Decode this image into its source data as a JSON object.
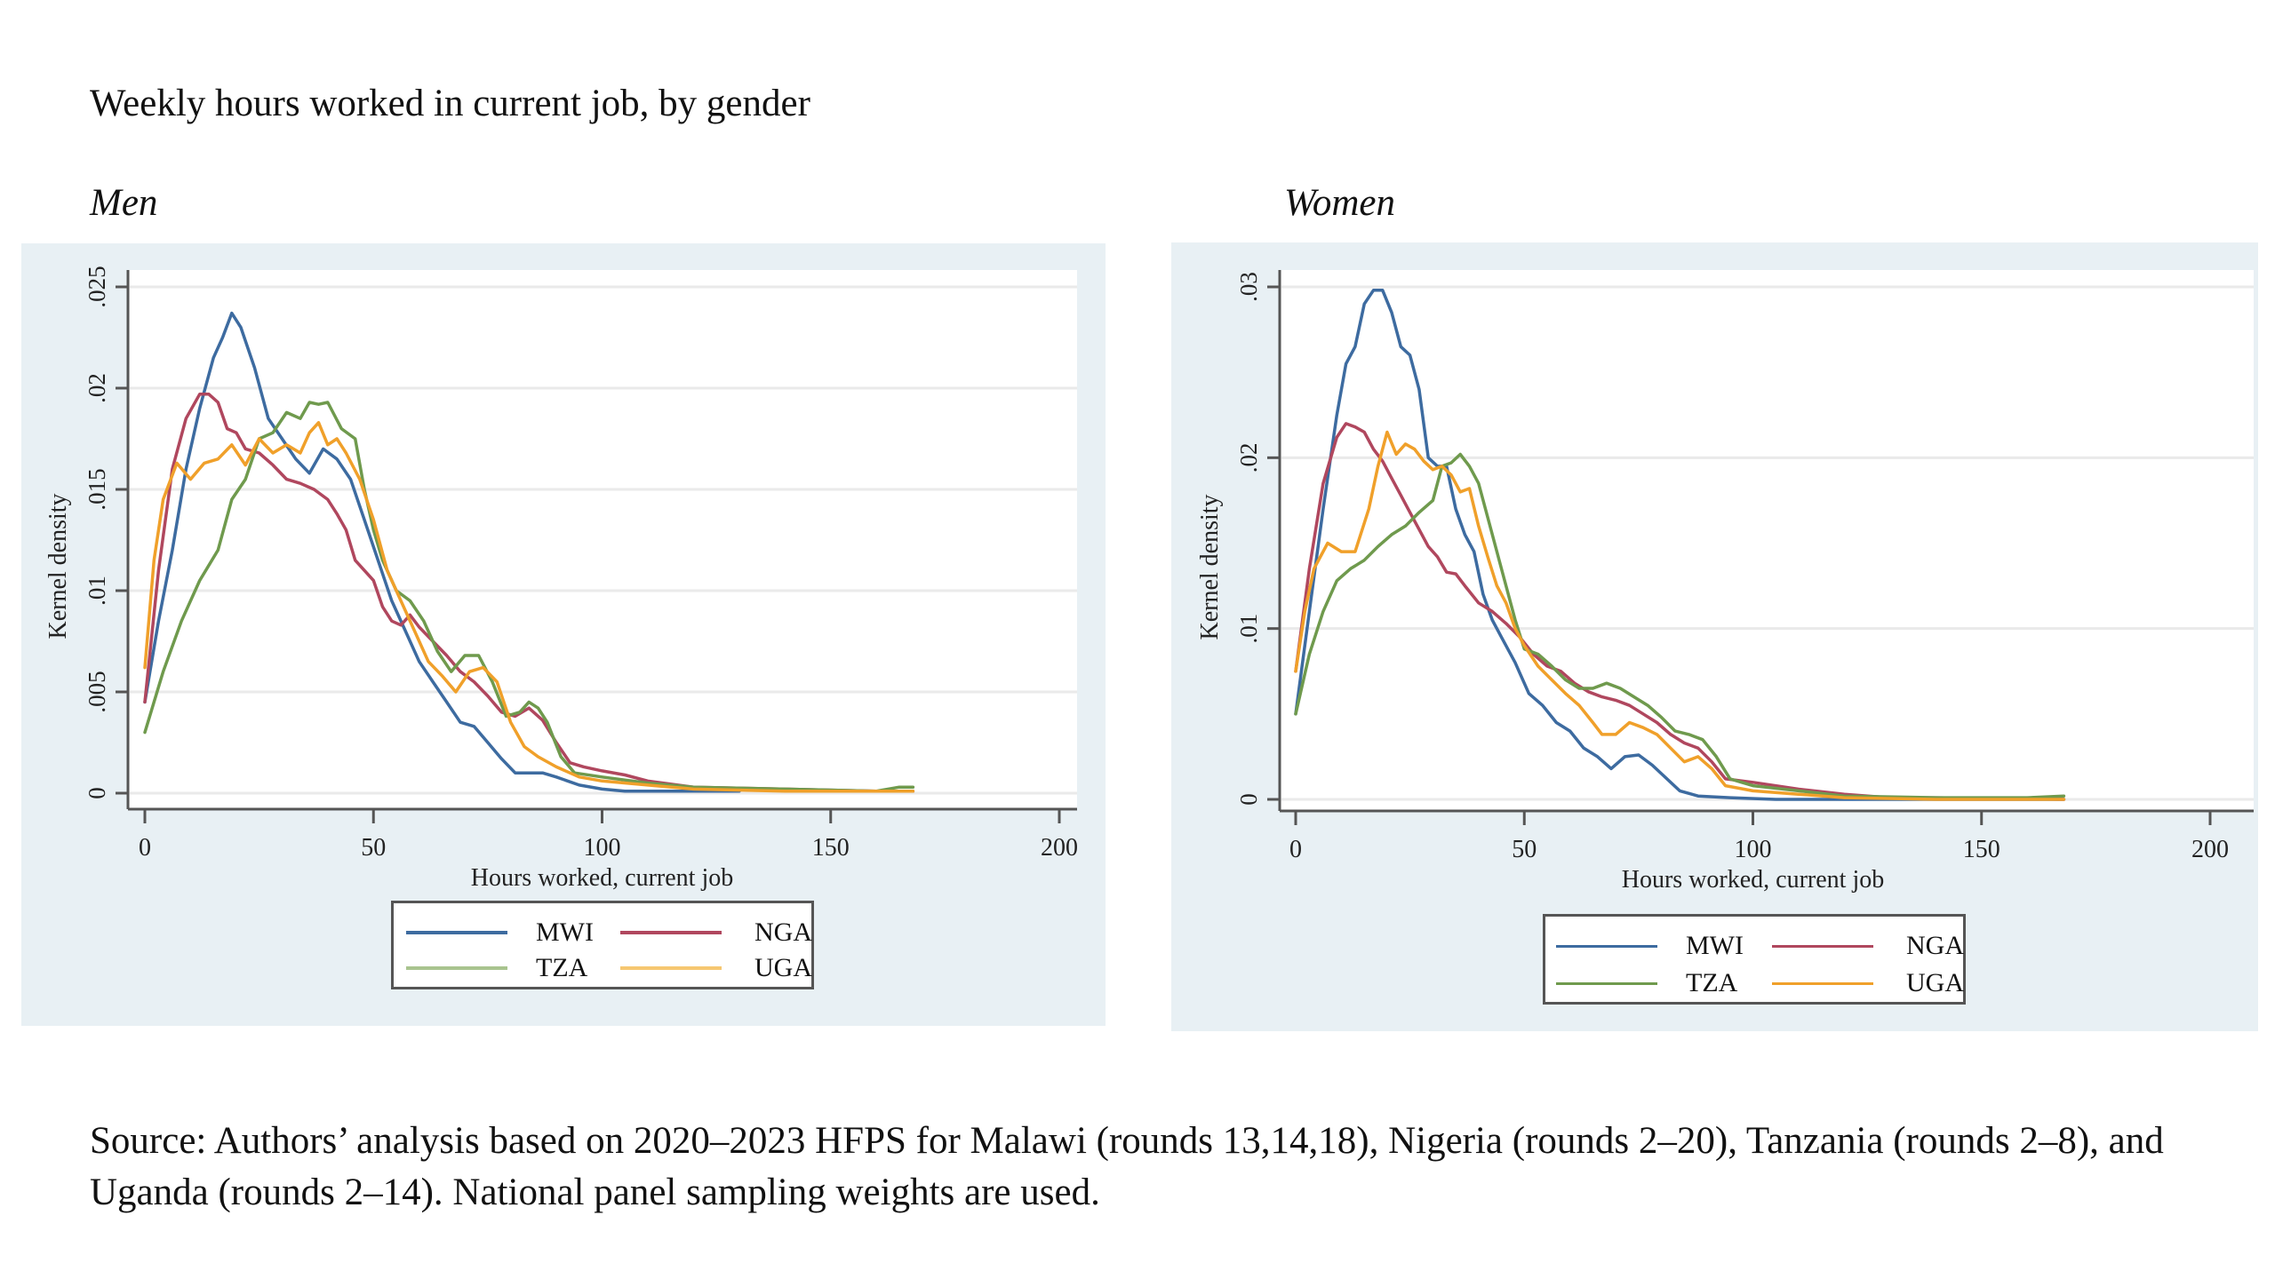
{
  "figure": {
    "title": "Weekly hours worked in current job, by gender",
    "source": "Source: Authors’ analysis based on 2020–2023 HFPS for Malawi (rounds 13,14,18), Nigeria (rounds 2–20), Tanzania (rounds 2–8), and Uganda (rounds 2–14). National panel sampling weights are used."
  },
  "colors": {
    "MWI": "#3d6ba0",
    "NGA": "#b0475e",
    "TZA": "#6f9a4d",
    "UGA": "#f0a02a",
    "panel_bg": "#e8f0f4",
    "grid": "#eaeaea",
    "axis": "#555555"
  },
  "chart_data": [
    {
      "type": "line",
      "panel_title": "Men",
      "title": "Men",
      "xlabel": "Hours worked, current job",
      "ylabel": "Kernel density",
      "xlim": [
        0,
        200
      ],
      "ylim": [
        0,
        0.025
      ],
      "xticks": [
        0,
        50,
        100,
        150,
        200
      ],
      "xtick_labels": [
        "0",
        "50",
        "100",
        "150",
        "200"
      ],
      "yticks": [
        0,
        0.005,
        0.01,
        0.015,
        0.02,
        0.025
      ],
      "ytick_labels": [
        "0",
        ".005",
        ".01",
        ".015",
        ".02",
        ".025"
      ],
      "grid": true,
      "legend_position": "bottom",
      "legend": [
        "MWI",
        "NGA",
        "TZA",
        "UGA"
      ],
      "series": [
        {
          "name": "MWI",
          "x": [
            0,
            3,
            6,
            9,
            12,
            15,
            17,
            19,
            21,
            24,
            27,
            30,
            33,
            36,
            39,
            42,
            45,
            48,
            51,
            54,
            57,
            60,
            63,
            66,
            69,
            72,
            75,
            78,
            81,
            84,
            87,
            90,
            95,
            100,
            105,
            110,
            120,
            130
          ],
          "y": [
            0.0045,
            0.0085,
            0.012,
            0.016,
            0.019,
            0.0215,
            0.0225,
            0.0237,
            0.023,
            0.021,
            0.0185,
            0.0175,
            0.0165,
            0.0158,
            0.017,
            0.0165,
            0.0155,
            0.0135,
            0.0115,
            0.0095,
            0.008,
            0.0065,
            0.0055,
            0.0045,
            0.0035,
            0.0033,
            0.0025,
            0.0017,
            0.001,
            0.001,
            0.001,
            0.0008,
            0.0004,
            0.0002,
            0.0001,
            0.0001,
            0.0001,
            0.0001
          ]
        },
        {
          "name": "NGA",
          "x": [
            0,
            3,
            6,
            9,
            12,
            14,
            16,
            18,
            20,
            22,
            25,
            28,
            31,
            34,
            37,
            40,
            42,
            44,
            46,
            48,
            50,
            52,
            54,
            56,
            58,
            60,
            63,
            66,
            69,
            72,
            75,
            78,
            81,
            84,
            87,
            90,
            93,
            96,
            100,
            105,
            110,
            120,
            140,
            160,
            168
          ],
          "y": [
            0.0045,
            0.011,
            0.016,
            0.0185,
            0.0197,
            0.0197,
            0.0193,
            0.018,
            0.0178,
            0.017,
            0.0168,
            0.0162,
            0.0155,
            0.0153,
            0.015,
            0.0145,
            0.0138,
            0.013,
            0.0115,
            0.011,
            0.0105,
            0.0092,
            0.0085,
            0.0083,
            0.0088,
            0.0082,
            0.0075,
            0.0068,
            0.006,
            0.0055,
            0.0048,
            0.004,
            0.0038,
            0.0042,
            0.0036,
            0.0025,
            0.0015,
            0.0013,
            0.0011,
            0.0009,
            0.0006,
            0.0003,
            0.0002,
            0.0001,
            0.0001
          ]
        },
        {
          "name": "TZA",
          "x": [
            0,
            4,
            8,
            12,
            16,
            19,
            22,
            25,
            28,
            31,
            34,
            36,
            38,
            40,
            43,
            46,
            48,
            50,
            52,
            55,
            58,
            61,
            64,
            67,
            70,
            73,
            76,
            79,
            82,
            84,
            86,
            88,
            91,
            94,
            100,
            110,
            120,
            140,
            160,
            165,
            168
          ],
          "y": [
            0.003,
            0.006,
            0.0085,
            0.0105,
            0.012,
            0.0145,
            0.0155,
            0.0175,
            0.0178,
            0.0188,
            0.0185,
            0.0193,
            0.0192,
            0.0193,
            0.018,
            0.0175,
            0.015,
            0.013,
            0.0115,
            0.01,
            0.0095,
            0.0085,
            0.007,
            0.006,
            0.0068,
            0.0068,
            0.0055,
            0.0038,
            0.004,
            0.0045,
            0.0042,
            0.0035,
            0.0018,
            0.001,
            0.0008,
            0.0005,
            0.0003,
            0.0002,
            0.0001,
            0.0003,
            0.0003
          ]
        },
        {
          "name": "UGA",
          "x": [
            0,
            2,
            4,
            7,
            10,
            13,
            16,
            19,
            22,
            25,
            28,
            31,
            34,
            36,
            38,
            40,
            42,
            44,
            47,
            50,
            53,
            56,
            59,
            62,
            65,
            68,
            71,
            74,
            77,
            80,
            83,
            86,
            90,
            95,
            100,
            110,
            120,
            140,
            168
          ],
          "y": [
            0.0062,
            0.0115,
            0.0145,
            0.0163,
            0.0155,
            0.0163,
            0.0165,
            0.0172,
            0.0162,
            0.0175,
            0.0168,
            0.0172,
            0.0168,
            0.0178,
            0.0183,
            0.0172,
            0.0175,
            0.0168,
            0.0155,
            0.0135,
            0.011,
            0.0095,
            0.008,
            0.0065,
            0.0058,
            0.005,
            0.006,
            0.0062,
            0.0055,
            0.0035,
            0.0023,
            0.0018,
            0.0013,
            0.0008,
            0.0006,
            0.0004,
            0.0002,
            0.0001,
            0.0001
          ]
        }
      ]
    },
    {
      "type": "line",
      "panel_title": "Women",
      "title": "Women",
      "xlabel": "Hours worked, current job",
      "ylabel": "Kernel density",
      "xlim": [
        0,
        200
      ],
      "ylim": [
        0,
        0.03
      ],
      "xticks": [
        0,
        50,
        100,
        150,
        200
      ],
      "xtick_labels": [
        "0",
        "50",
        "100",
        "150",
        "200"
      ],
      "yticks": [
        0,
        0.01,
        0.02,
        0.03
      ],
      "ytick_labels": [
        "0",
        ".01",
        ".02",
        ".03"
      ],
      "grid": true,
      "legend_position": "bottom",
      "legend": [
        "MWI",
        "NGA",
        "TZA",
        "UGA"
      ],
      "series": [
        {
          "name": "MWI",
          "x": [
            0,
            3,
            6,
            9,
            11,
            13,
            15,
            17,
            19,
            21,
            23,
            25,
            27,
            29,
            31,
            33,
            35,
            37,
            39,
            41,
            43,
            45,
            48,
            51,
            54,
            57,
            60,
            63,
            66,
            69,
            72,
            75,
            78,
            80,
            84,
            88,
            95,
            105,
            120,
            140,
            160,
            168
          ],
          "y": [
            0.005,
            0.011,
            0.017,
            0.0225,
            0.0255,
            0.0265,
            0.029,
            0.0298,
            0.0298,
            0.0285,
            0.0265,
            0.026,
            0.024,
            0.02,
            0.0195,
            0.0195,
            0.017,
            0.0155,
            0.0145,
            0.012,
            0.0105,
            0.0095,
            0.008,
            0.0062,
            0.0055,
            0.0045,
            0.004,
            0.003,
            0.0025,
            0.0018,
            0.0025,
            0.0026,
            0.002,
            0.0015,
            0.0005,
            0.0002,
            0.0001,
            0,
            0,
            0,
            0,
            0
          ]
        },
        {
          "name": "NGA",
          "x": [
            0,
            3,
            6,
            9,
            11,
            13,
            15,
            17,
            19,
            21,
            23,
            25,
            27,
            29,
            31,
            33,
            35,
            37,
            40,
            43,
            46,
            49,
            52,
            55,
            58,
            61,
            64,
            67,
            70,
            73,
            76,
            79,
            82,
            85,
            88,
            91,
            94,
            100,
            110,
            120,
            130,
            140,
            168
          ],
          "y": [
            0.0075,
            0.0135,
            0.0185,
            0.0212,
            0.022,
            0.0218,
            0.0215,
            0.0205,
            0.0198,
            0.0188,
            0.0178,
            0.0168,
            0.0158,
            0.0148,
            0.0142,
            0.0133,
            0.0132,
            0.0125,
            0.0115,
            0.011,
            0.0103,
            0.0095,
            0.0085,
            0.0078,
            0.0075,
            0.0068,
            0.0063,
            0.006,
            0.0058,
            0.0055,
            0.005,
            0.0045,
            0.0038,
            0.0033,
            0.003,
            0.0022,
            0.0012,
            0.001,
            0.0006,
            0.0003,
            0.0001,
            0.0001,
            0
          ]
        },
        {
          "name": "TZA",
          "x": [
            0,
            3,
            6,
            9,
            12,
            15,
            18,
            21,
            24,
            27,
            30,
            32,
            34,
            36,
            38,
            40,
            42,
            44,
            46,
            48,
            50,
            53,
            56,
            59,
            62,
            65,
            68,
            71,
            74,
            77,
            80,
            83,
            86,
            89,
            92,
            95,
            100,
            110,
            120,
            140,
            160,
            168
          ],
          "y": [
            0.005,
            0.0085,
            0.011,
            0.0128,
            0.0135,
            0.014,
            0.0148,
            0.0155,
            0.016,
            0.0168,
            0.0175,
            0.0195,
            0.0197,
            0.0202,
            0.0195,
            0.0185,
            0.0165,
            0.0145,
            0.0125,
            0.0105,
            0.0088,
            0.0085,
            0.0078,
            0.007,
            0.0065,
            0.0065,
            0.0068,
            0.0065,
            0.006,
            0.0055,
            0.0048,
            0.004,
            0.0038,
            0.0035,
            0.0025,
            0.0012,
            0.0008,
            0.0005,
            0.0002,
            0.0001,
            0.0001,
            0.0002
          ]
        },
        {
          "name": "UGA",
          "x": [
            0,
            2,
            4,
            7,
            10,
            13,
            16,
            18,
            20,
            22,
            24,
            26,
            28,
            30,
            32,
            34,
            36,
            38,
            40,
            42,
            44,
            46,
            48,
            50,
            53,
            56,
            59,
            62,
            65,
            67,
            70,
            73,
            76,
            79,
            82,
            85,
            88,
            91,
            94,
            100,
            110,
            120,
            140,
            168
          ],
          "y": [
            0.0075,
            0.011,
            0.0135,
            0.015,
            0.0145,
            0.0145,
            0.017,
            0.0195,
            0.0215,
            0.0202,
            0.0208,
            0.0205,
            0.0198,
            0.0193,
            0.0195,
            0.019,
            0.018,
            0.0182,
            0.016,
            0.0142,
            0.0125,
            0.0115,
            0.01,
            0.009,
            0.0078,
            0.007,
            0.0062,
            0.0055,
            0.0045,
            0.0038,
            0.0038,
            0.0045,
            0.0042,
            0.0038,
            0.003,
            0.0022,
            0.0025,
            0.0018,
            0.0008,
            0.0005,
            0.0003,
            0.0001,
            0,
            0
          ]
        }
      ]
    }
  ]
}
